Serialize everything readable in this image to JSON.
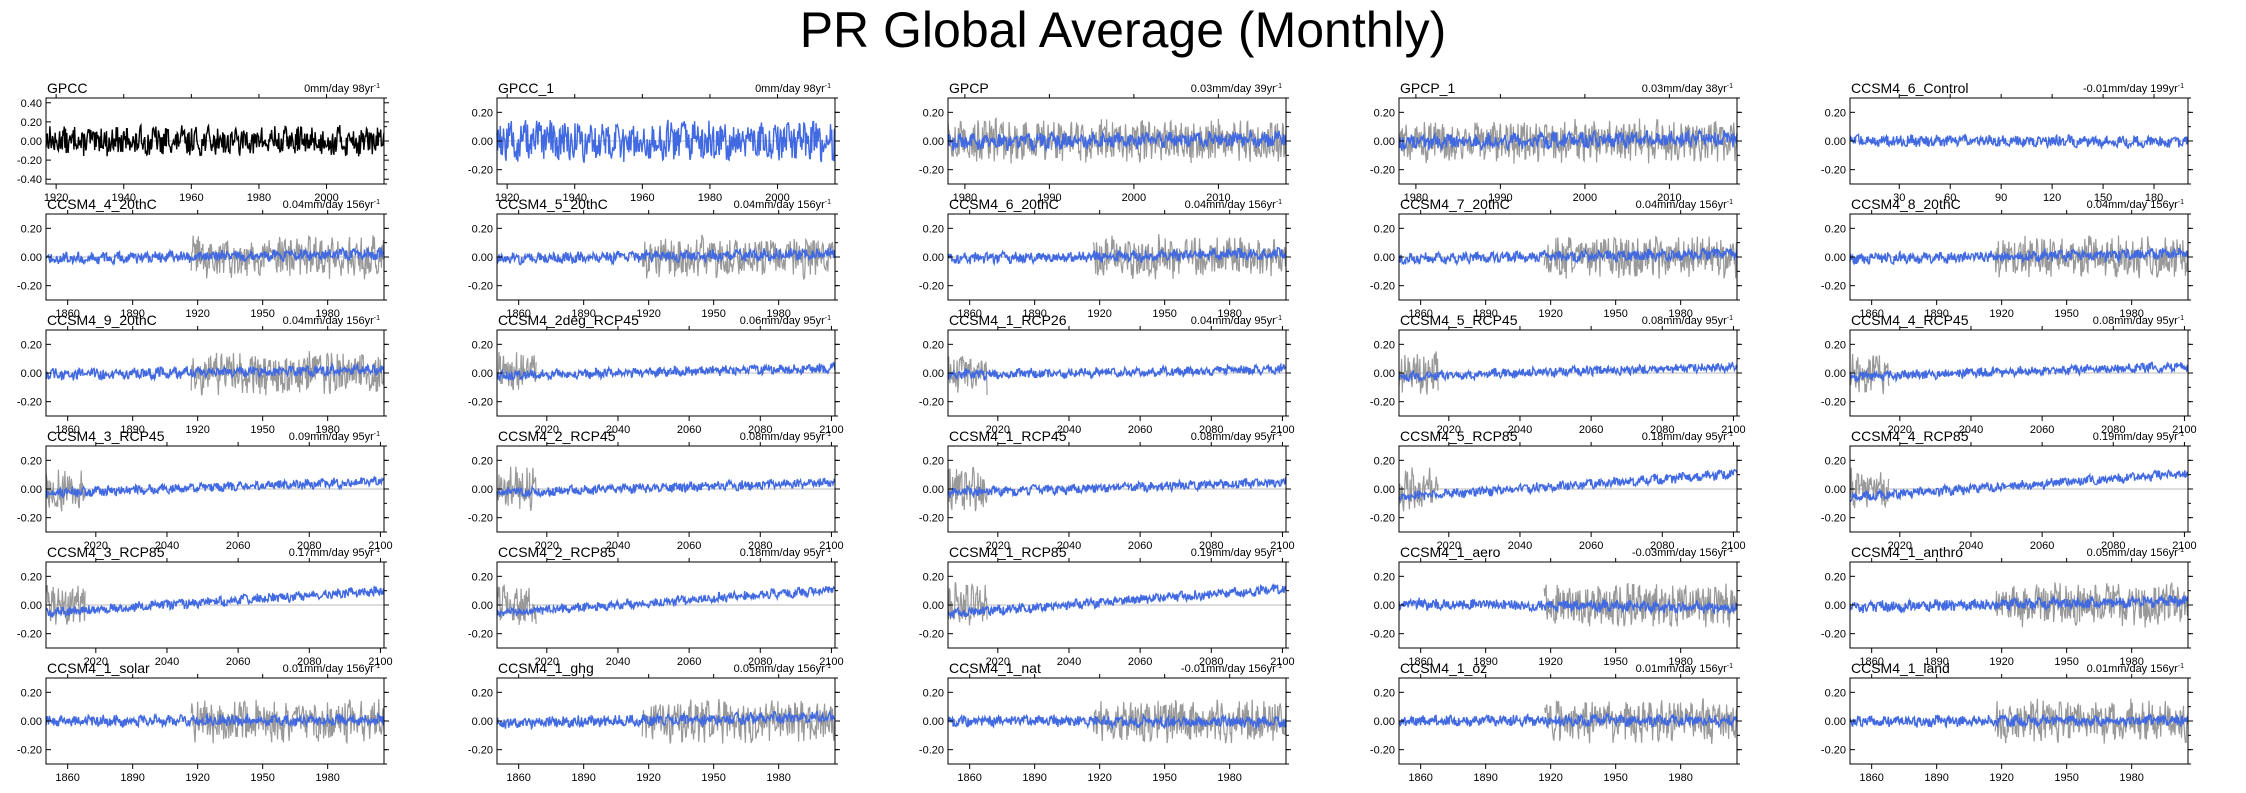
{
  "title": "PR Global Average (Monthly)",
  "colors": {
    "model": "#4169e1",
    "obs": "#999999",
    "obs_black": "#000000",
    "axis": "#000000"
  },
  "y_ticks_default": [
    -0.2,
    0.0,
    0.2
  ],
  "y_ticks_gpcc": [
    -0.4,
    -0.2,
    0.0,
    0.2,
    0.4
  ],
  "y_tick_labels_default": [
    "-0.20",
    "0.00",
    "0.20"
  ],
  "y_tick_labels_gpcc": [
    "-0.40",
    "-0.20",
    "0.00",
    "0.20",
    "0.40"
  ],
  "x_ticks": {
    "gpcc": {
      "range": [
        1917,
        2017
      ],
      "ticks": [
        1920,
        1940,
        1960,
        1980,
        2000
      ]
    },
    "gpcp": {
      "range": [
        1978,
        2018
      ],
      "ticks": [
        1980,
        1990,
        2000,
        2010
      ]
    },
    "control": {
      "range": [
        1,
        200
      ],
      "ticks": [
        30,
        60,
        90,
        120,
        150,
        180
      ]
    },
    "hist": {
      "range": [
        1850,
        2006
      ],
      "ticks": [
        1860,
        1890,
        1920,
        1950,
        1980
      ]
    },
    "rcp": {
      "range": [
        2006,
        2101
      ],
      "ticks": [
        2020,
        2040,
        2060,
        2080,
        2100
      ]
    }
  },
  "chart_data": [
    {
      "type": "line",
      "label": "GPCC",
      "trend_label": "0mm/day 98yr",
      "xaxis": "gpcc",
      "trend": 0.0,
      "amp": 0.13,
      "color": "obs_black",
      "obs": false,
      "ylim": [
        -0.45,
        0.45
      ]
    },
    {
      "type": "line",
      "label": "GPCC_1",
      "trend_label": "0mm/day 98yr",
      "xaxis": "gpcc",
      "trend": 0.0,
      "amp": 0.12,
      "color": "model",
      "obs": false,
      "ylim": [
        -0.3,
        0.3
      ]
    },
    {
      "type": "line",
      "label": "GPCP",
      "trend_label": "0.03mm/day 39yr",
      "xaxis": "gpcp",
      "trend": 0.03,
      "amp": 0.05,
      "color": "model",
      "obs": true,
      "ylim": [
        -0.3,
        0.3
      ]
    },
    {
      "type": "line",
      "label": "GPCP_1",
      "trend_label": "0.03mm/day 38yr",
      "xaxis": "gpcp",
      "trend": 0.03,
      "amp": 0.05,
      "color": "model",
      "obs": true,
      "ylim": [
        -0.3,
        0.3
      ]
    },
    {
      "type": "line",
      "label": "CCSM4_6_Control",
      "trend_label": "-0.01mm/day 199yr",
      "xaxis": "control",
      "trend": -0.01,
      "amp": 0.035,
      "color": "model",
      "obs": false,
      "ylim": [
        -0.3,
        0.3
      ]
    },
    {
      "type": "line",
      "label": "CCSM4_4_20thC",
      "trend_label": "0.04mm/day 156yr",
      "xaxis": "hist",
      "trend": 0.04,
      "amp": 0.035,
      "color": "model",
      "obs": true,
      "ylim": [
        -0.3,
        0.3
      ]
    },
    {
      "type": "line",
      "label": "CCSM4_5_20thC",
      "trend_label": "0.04mm/day 156yr",
      "xaxis": "hist",
      "trend": 0.04,
      "amp": 0.035,
      "color": "model",
      "obs": true,
      "ylim": [
        -0.3,
        0.3
      ]
    },
    {
      "type": "line",
      "label": "CCSM4_6_20thC",
      "trend_label": "0.04mm/day 156yr",
      "xaxis": "hist",
      "trend": 0.04,
      "amp": 0.035,
      "color": "model",
      "obs": true,
      "ylim": [
        -0.3,
        0.3
      ]
    },
    {
      "type": "line",
      "label": "CCSM4_7_20thC",
      "trend_label": "0.04mm/day 156yr",
      "xaxis": "hist",
      "trend": 0.04,
      "amp": 0.035,
      "color": "model",
      "obs": true,
      "ylim": [
        -0.3,
        0.3
      ]
    },
    {
      "type": "line",
      "label": "CCSM4_8_20thC",
      "trend_label": "0.04mm/day 156yr",
      "xaxis": "hist",
      "trend": 0.04,
      "amp": 0.035,
      "color": "model",
      "obs": true,
      "ylim": [
        -0.3,
        0.3
      ]
    },
    {
      "type": "line",
      "label": "CCSM4_9_20thC",
      "trend_label": "0.04mm/day 156yr",
      "xaxis": "hist",
      "trend": 0.04,
      "amp": 0.035,
      "color": "model",
      "obs": true,
      "ylim": [
        -0.3,
        0.3
      ]
    },
    {
      "type": "line",
      "label": "CCSM4_2deg_RCP45",
      "trend_label": "0.06mm/day 95yr",
      "xaxis": "rcp",
      "trend": 0.06,
      "amp": 0.03,
      "color": "model",
      "obs": true,
      "ylim": [
        -0.3,
        0.3
      ]
    },
    {
      "type": "line",
      "label": "CCSM4_1_RCP26",
      "trend_label": "0.04mm/day 95yr",
      "xaxis": "rcp",
      "trend": 0.04,
      "amp": 0.03,
      "color": "model",
      "obs": true,
      "ylim": [
        -0.3,
        0.3
      ]
    },
    {
      "type": "line",
      "label": "CCSM4_5_RCP45",
      "trend_label": "0.08mm/day 95yr",
      "xaxis": "rcp",
      "trend": 0.08,
      "amp": 0.03,
      "color": "model",
      "obs": true,
      "ylim": [
        -0.3,
        0.3
      ]
    },
    {
      "type": "line",
      "label": "CCSM4_4_RCP45",
      "trend_label": "0.08mm/day 95yr",
      "xaxis": "rcp",
      "trend": 0.08,
      "amp": 0.03,
      "color": "model",
      "obs": true,
      "ylim": [
        -0.3,
        0.3
      ]
    },
    {
      "type": "line",
      "label": "CCSM4_3_RCP45",
      "trend_label": "0.09mm/day 95yr",
      "xaxis": "rcp",
      "trend": 0.09,
      "amp": 0.03,
      "color": "model",
      "obs": true,
      "ylim": [
        -0.3,
        0.3
      ]
    },
    {
      "type": "line",
      "label": "CCSM4_2_RCP45",
      "trend_label": "0.08mm/day 95yr",
      "xaxis": "rcp",
      "trend": 0.08,
      "amp": 0.03,
      "color": "model",
      "obs": true,
      "ylim": [
        -0.3,
        0.3
      ]
    },
    {
      "type": "line",
      "label": "CCSM4_1_RCP45",
      "trend_label": "0.08mm/day 95yr",
      "xaxis": "rcp",
      "trend": 0.08,
      "amp": 0.03,
      "color": "model",
      "obs": true,
      "ylim": [
        -0.3,
        0.3
      ]
    },
    {
      "type": "line",
      "label": "CCSM4_5_RCP85",
      "trend_label": "0.18mm/day 95yr",
      "xaxis": "rcp",
      "trend": 0.18,
      "amp": 0.03,
      "color": "model",
      "obs": true,
      "ylim": [
        -0.3,
        0.3
      ]
    },
    {
      "type": "line",
      "label": "CCSM4_4_RCP85",
      "trend_label": "0.19mm/day 95yr",
      "xaxis": "rcp",
      "trend": 0.19,
      "amp": 0.03,
      "color": "model",
      "obs": true,
      "ylim": [
        -0.3,
        0.3
      ]
    },
    {
      "type": "line",
      "label": "CCSM4_3_RCP85",
      "trend_label": "0.17mm/day 95yr",
      "xaxis": "rcp",
      "trend": 0.17,
      "amp": 0.03,
      "color": "model",
      "obs": true,
      "ylim": [
        -0.3,
        0.3
      ]
    },
    {
      "type": "line",
      "label": "CCSM4_2_RCP85",
      "trend_label": "0.18mm/day 95yr",
      "xaxis": "rcp",
      "trend": 0.18,
      "amp": 0.03,
      "color": "model",
      "obs": true,
      "ylim": [
        -0.3,
        0.3
      ]
    },
    {
      "type": "line",
      "label": "CCSM4_1_RCP85",
      "trend_label": "0.19mm/day 95yr",
      "xaxis": "rcp",
      "trend": 0.19,
      "amp": 0.03,
      "color": "model",
      "obs": true,
      "ylim": [
        -0.3,
        0.3
      ]
    },
    {
      "type": "line",
      "label": "CCSM4_1_aero",
      "trend_label": "-0.03mm/day 156yr",
      "xaxis": "hist",
      "trend": -0.03,
      "amp": 0.035,
      "color": "model",
      "obs": true,
      "ylim": [
        -0.3,
        0.3
      ]
    },
    {
      "type": "line",
      "label": "CCSM4_1_anthro",
      "trend_label": "0.05mm/day 156yr",
      "xaxis": "hist",
      "trend": 0.05,
      "amp": 0.035,
      "color": "model",
      "obs": true,
      "ylim": [
        -0.3,
        0.3
      ]
    },
    {
      "type": "line",
      "label": "CCSM4_1_solar",
      "trend_label": "0.01mm/day 156yr",
      "xaxis": "hist",
      "trend": 0.01,
      "amp": 0.035,
      "color": "model",
      "obs": true,
      "ylim": [
        -0.3,
        0.3
      ]
    },
    {
      "type": "line",
      "label": "CCSM4_1_ghg",
      "trend_label": "0.05mm/day 156yr",
      "xaxis": "hist",
      "trend": 0.05,
      "amp": 0.035,
      "color": "model",
      "obs": true,
      "ylim": [
        -0.3,
        0.3
      ]
    },
    {
      "type": "line",
      "label": "CCSM4_1_nat",
      "trend_label": "-0.01mm/day 156yr",
      "xaxis": "hist",
      "trend": -0.01,
      "amp": 0.035,
      "color": "model",
      "obs": true,
      "ylim": [
        -0.3,
        0.3
      ]
    },
    {
      "type": "line",
      "label": "CCSM4_1_oz",
      "trend_label": "0.01mm/day 156yr",
      "xaxis": "hist",
      "trend": 0.01,
      "amp": 0.035,
      "color": "model",
      "obs": true,
      "ylim": [
        -0.3,
        0.3
      ]
    },
    {
      "type": "line",
      "label": "CCSM4_1_land",
      "trend_label": "0.01mm/day 156yr",
      "xaxis": "hist",
      "trend": 0.01,
      "amp": 0.035,
      "color": "model",
      "obs": true,
      "ylim": [
        -0.3,
        0.3
      ]
    }
  ]
}
